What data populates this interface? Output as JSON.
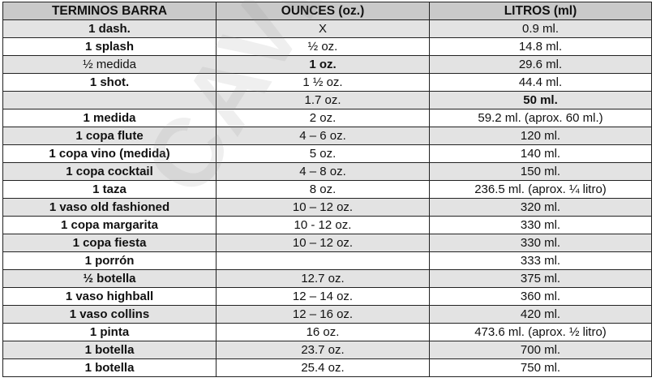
{
  "headers": [
    "TERMINOS BARRA",
    "OUNCES (oz.)",
    "LITROS (ml)"
  ],
  "watermark": "CAVE",
  "rows": [
    {
      "term": "1 dash.",
      "oz": "X",
      "ml": "0.9 ml.",
      "term_bold": true,
      "oz_bold": false,
      "ml_bold": false
    },
    {
      "term": "1 splash",
      "oz": "½ oz.",
      "ml": "14.8 ml.",
      "term_bold": true,
      "oz_bold": false,
      "ml_bold": false
    },
    {
      "term": "½ medida",
      "oz": "1 oz.",
      "ml": "29.6 ml.",
      "term_bold": false,
      "oz_bold": true,
      "ml_bold": false
    },
    {
      "term": "1 shot.",
      "oz": "1 ½ oz.",
      "ml": "44.4 ml.",
      "term_bold": true,
      "oz_bold": false,
      "ml_bold": false
    },
    {
      "term": "",
      "oz": "1.7 oz.",
      "ml": "50 ml.",
      "term_bold": true,
      "oz_bold": false,
      "ml_bold": true
    },
    {
      "term": "1 medida",
      "oz": "2 oz.",
      "ml": "59.2 ml. (aprox. 60 ml.)",
      "term_bold": true,
      "oz_bold": false,
      "ml_bold": false
    },
    {
      "term": "1 copa flute",
      "oz": "4 – 6 oz.",
      "ml": "120 ml.",
      "term_bold": true,
      "oz_bold": false,
      "ml_bold": false
    },
    {
      "term": "1 copa vino (medida)",
      "oz": "5 oz.",
      "ml": "140 ml.",
      "term_bold": true,
      "oz_bold": false,
      "ml_bold": false
    },
    {
      "term": "1 copa cocktail",
      "oz": "4 – 8 oz.",
      "ml": "150 ml.",
      "term_bold": true,
      "oz_bold": false,
      "ml_bold": false
    },
    {
      "term": "1 taza",
      "oz": "8 oz.",
      "ml": "236.5 ml.  (aprox. ¼ litro)",
      "term_bold": true,
      "oz_bold": false,
      "ml_bold": false
    },
    {
      "term": "1 vaso old fashioned",
      "oz": "10 – 12 oz.",
      "ml": "320 ml.",
      "term_bold": true,
      "oz_bold": false,
      "ml_bold": false
    },
    {
      "term": "1 copa margarita",
      "oz": "10 - 12 oz.",
      "ml": "330 ml.",
      "term_bold": true,
      "oz_bold": false,
      "ml_bold": false
    },
    {
      "term": "1 copa fiesta",
      "oz": "10 – 12 oz.",
      "ml": "330 ml.",
      "term_bold": true,
      "oz_bold": false,
      "ml_bold": false
    },
    {
      "term": "1 porrón",
      "oz": "",
      "ml": "333 ml.",
      "term_bold": true,
      "oz_bold": false,
      "ml_bold": false
    },
    {
      "term": "½ botella",
      "oz": "12.7 oz.",
      "ml": "375 ml.",
      "term_bold": true,
      "oz_bold": false,
      "ml_bold": false
    },
    {
      "term": "1 vaso highball",
      "oz": "12 – 14 oz.",
      "ml": "360 ml.",
      "term_bold": true,
      "oz_bold": false,
      "ml_bold": false
    },
    {
      "term": "1 vaso collins",
      "oz": "12 – 16 oz.",
      "ml": "420 ml.",
      "term_bold": true,
      "oz_bold": false,
      "ml_bold": false
    },
    {
      "term": "1 pinta",
      "oz": "16 oz.",
      "ml": "473.6 ml. (aprox. ½ litro)",
      "term_bold": true,
      "oz_bold": false,
      "ml_bold": false
    },
    {
      "term": "1 botella",
      "oz": "23.7 oz.",
      "ml": "700 ml.",
      "term_bold": true,
      "oz_bold": false,
      "ml_bold": false
    },
    {
      "term": "1 botella",
      "oz": "25.4 oz.",
      "ml": "750 ml.",
      "term_bold": true,
      "oz_bold": false,
      "ml_bold": false
    }
  ]
}
